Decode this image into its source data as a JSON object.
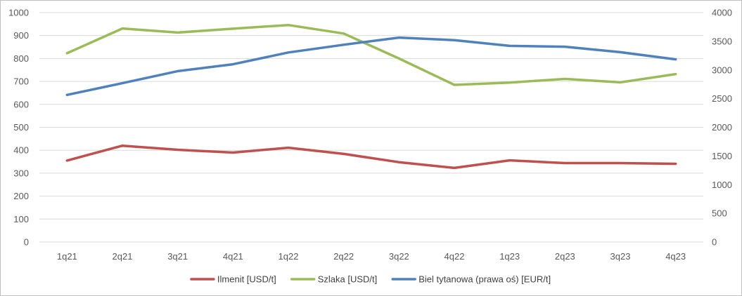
{
  "chart_data": {
    "type": "line",
    "categories": [
      "1q21",
      "2q21",
      "3q21",
      "4q21",
      "1q22",
      "2q22",
      "3q22",
      "4q22",
      "1q23",
      "2q23",
      "3q23",
      "4q23"
    ],
    "y_left": {
      "min": 0,
      "max": 1000,
      "step": 100,
      "ticks": [
        "0",
        "100",
        "200",
        "300",
        "400",
        "500",
        "600",
        "700",
        "800",
        "900",
        "1000"
      ]
    },
    "y_right": {
      "min": 0,
      "max": 4000,
      "step": 500,
      "ticks": [
        "0",
        "500",
        "1000",
        "1500",
        "2000",
        "2500",
        "3000",
        "3500",
        "4000"
      ]
    },
    "grid": true,
    "legend_position": "bottom",
    "series": [
      {
        "name": "Ilmenit [USD/t]",
        "axis": "left",
        "color": "#c0504d",
        "values": [
          355,
          420,
          402,
          390,
          411,
          384,
          348,
          323,
          356,
          344,
          344,
          341
        ]
      },
      {
        "name": "Szlaka [USD/t]",
        "axis": "left",
        "color": "#9bbb59",
        "values": [
          823,
          931,
          913,
          930,
          946,
          909,
          800,
          685,
          695,
          711,
          696,
          732
        ]
      },
      {
        "name": "Biel tytanowa (prawa oś) [EUR/t]",
        "axis": "right",
        "color": "#4f81bd",
        "values": [
          2565,
          2770,
          2980,
          3100,
          3305,
          3440,
          3565,
          3520,
          3420,
          3405,
          3310,
          3185
        ]
      }
    ]
  }
}
